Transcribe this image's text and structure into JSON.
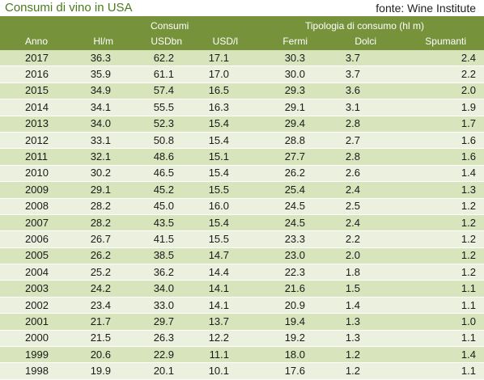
{
  "title": "Consumi di vino in USA",
  "source": "fonte: Wine Institute",
  "header": {
    "group_consumi": "Consumi",
    "group_tipologia": "Tipologia di consumo (hl m)",
    "columns": [
      "Anno",
      "Hl/m",
      "USDbn",
      "USD/l",
      "Fermi",
      "Dolci",
      "Spumanti"
    ]
  },
  "rows": [
    [
      "2017",
      "36.3",
      "62.2",
      "17.1",
      "30.3",
      "3.7",
      "2.4"
    ],
    [
      "2016",
      "35.9",
      "61.1",
      "17.0",
      "30.0",
      "3.7",
      "2.2"
    ],
    [
      "2015",
      "34.9",
      "57.4",
      "16.5",
      "29.3",
      "3.6",
      "2.0"
    ],
    [
      "2014",
      "34.1",
      "55.5",
      "16.3",
      "29.1",
      "3.1",
      "1.9"
    ],
    [
      "2013",
      "34.0",
      "52.3",
      "15.4",
      "29.4",
      "2.8",
      "1.7"
    ],
    [
      "2012",
      "33.1",
      "50.8",
      "15.4",
      "28.8",
      "2.7",
      "1.6"
    ],
    [
      "2011",
      "32.1",
      "48.6",
      "15.1",
      "27.7",
      "2.8",
      "1.6"
    ],
    [
      "2010",
      "30.2",
      "46.5",
      "15.4",
      "26.2",
      "2.6",
      "1.4"
    ],
    [
      "2009",
      "29.1",
      "45.2",
      "15.5",
      "25.4",
      "2.4",
      "1.3"
    ],
    [
      "2008",
      "28.2",
      "45.0",
      "16.0",
      "24.5",
      "2.5",
      "1.2"
    ],
    [
      "2007",
      "28.2",
      "43.5",
      "15.4",
      "24.5",
      "2.4",
      "1.2"
    ],
    [
      "2006",
      "26.7",
      "41.5",
      "15.5",
      "23.3",
      "2.2",
      "1.2"
    ],
    [
      "2005",
      "26.2",
      "38.5",
      "14.7",
      "23.0",
      "2.0",
      "1.2"
    ],
    [
      "2004",
      "25.2",
      "36.2",
      "14.4",
      "22.3",
      "1.8",
      "1.2"
    ],
    [
      "2003",
      "24.2",
      "34.0",
      "14.1",
      "21.6",
      "1.5",
      "1.1"
    ],
    [
      "2002",
      "23.4",
      "33.0",
      "14.1",
      "20.9",
      "1.4",
      "1.1"
    ],
    [
      "2001",
      "21.7",
      "29.7",
      "13.7",
      "19.4",
      "1.3",
      "1.0"
    ],
    [
      "2000",
      "21.5",
      "26.3",
      "12.2",
      "19.2",
      "1.3",
      "1.1"
    ],
    [
      "1999",
      "20.6",
      "22.9",
      "11.1",
      "18.0",
      "1.2",
      "1.4"
    ],
    [
      "1998",
      "19.9",
      "20.1",
      "10.1",
      "17.6",
      "1.2",
      "1.1"
    ]
  ],
  "colors": {
    "header_bg": "#76933c",
    "row_dark": "#d8e4bc",
    "row_light": "#ebf1de",
    "title_color": "#4a7a1e"
  }
}
